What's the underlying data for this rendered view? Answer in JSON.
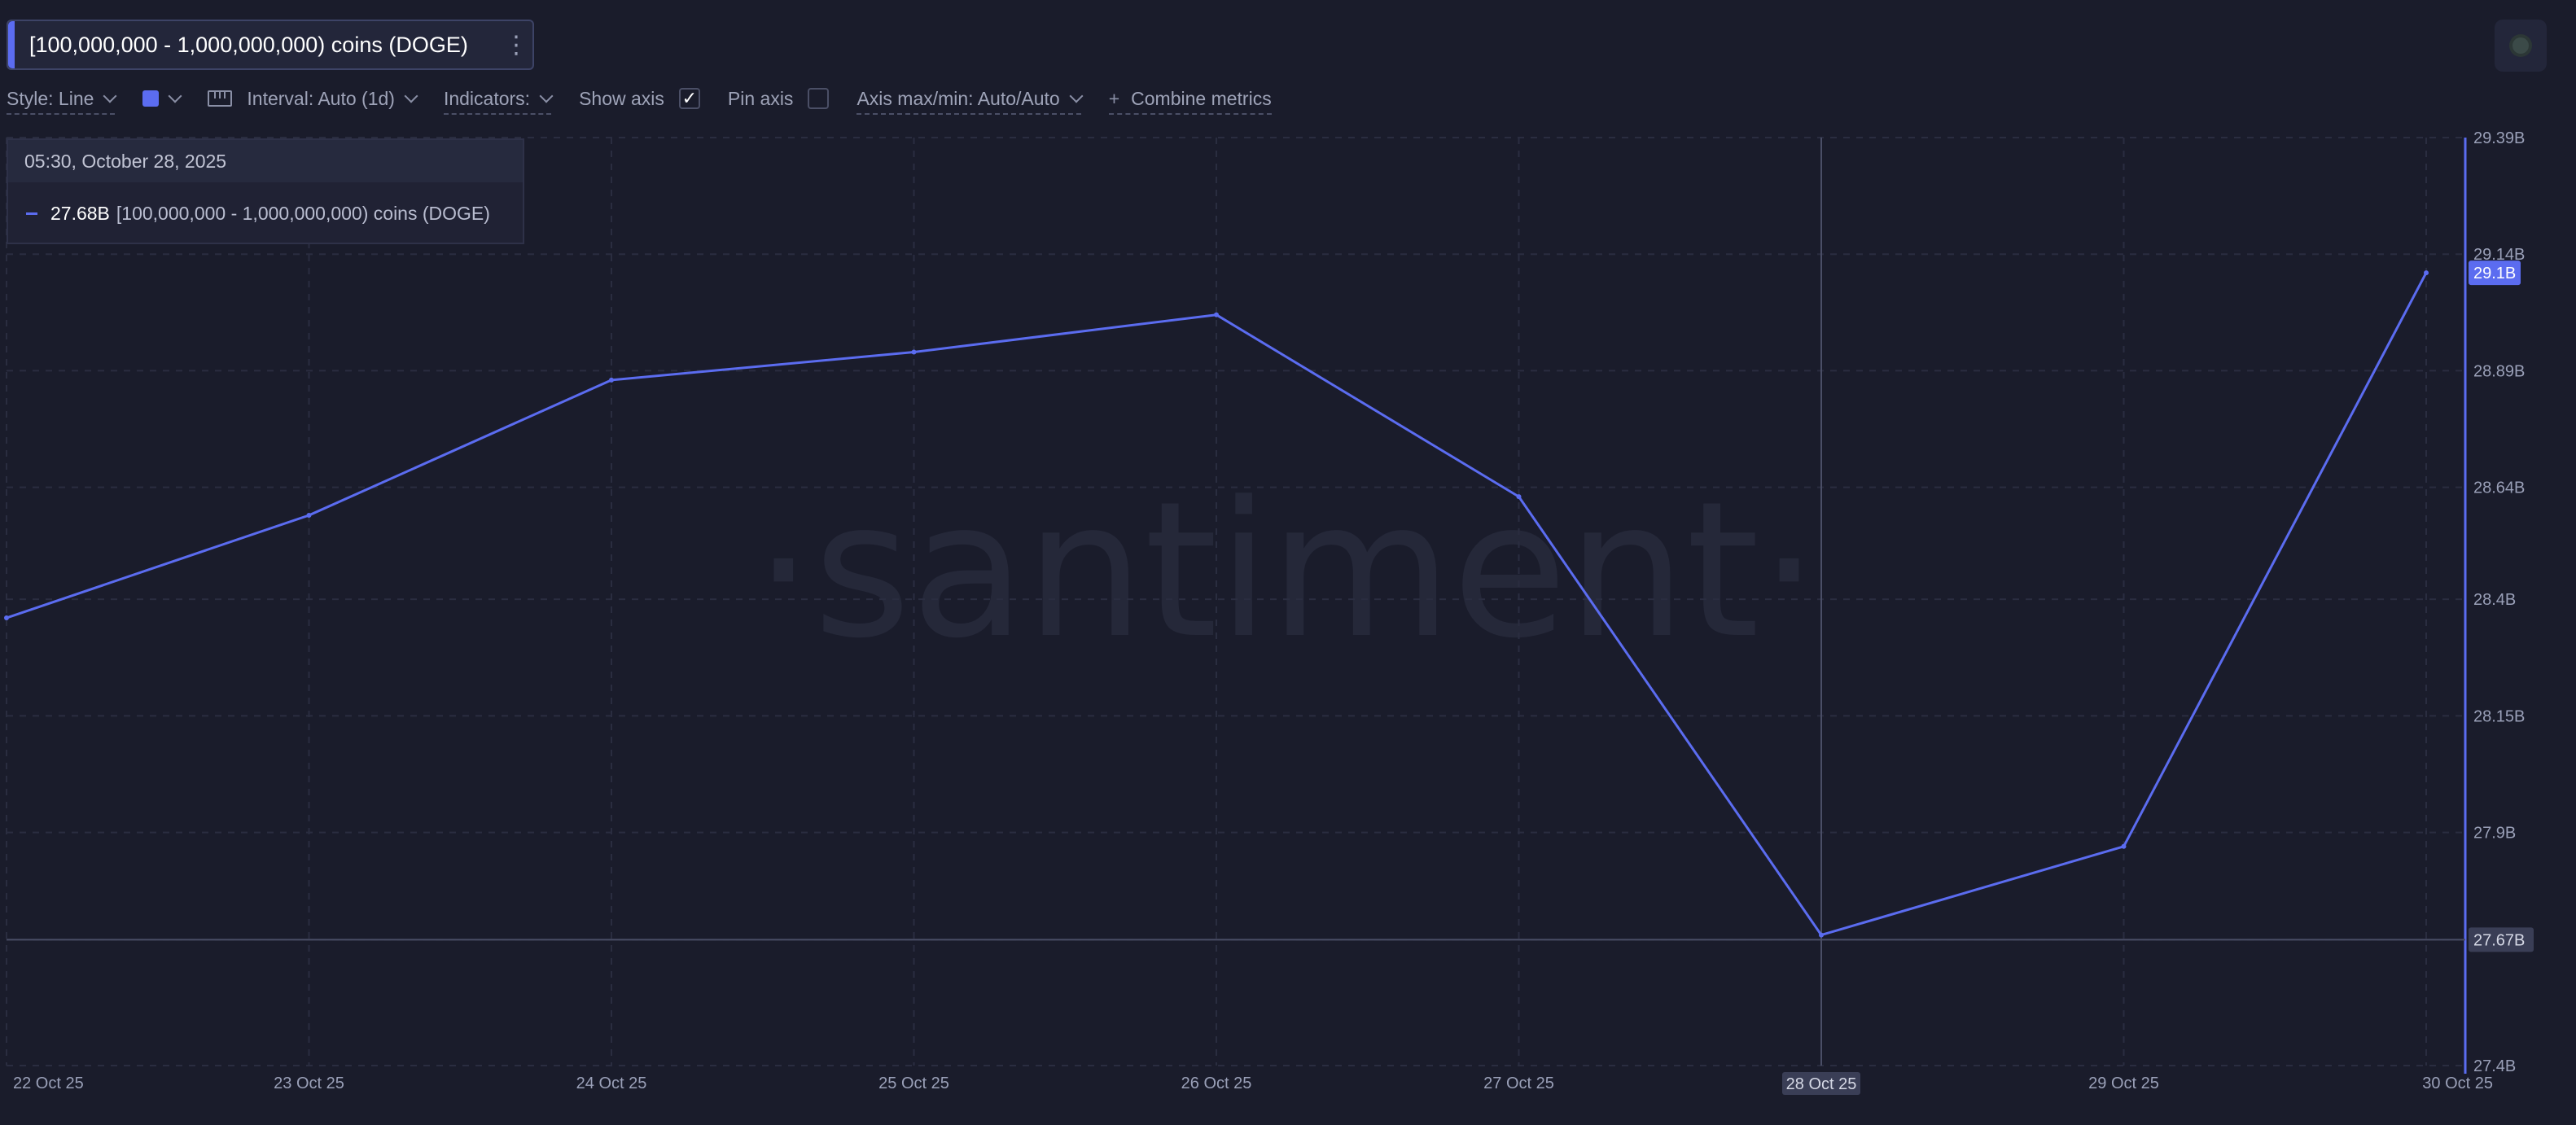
{
  "metric": {
    "label": "[100,000,000 - 1,000,000,000) coins (DOGE)"
  },
  "toolbar": {
    "style_label": "Style: Line",
    "interval_label": "Interval: Auto (1d)",
    "indicators_label": "Indicators:",
    "show_axis_label": "Show axis",
    "pin_axis_label": "Pin axis",
    "axis_maxmin_label": "Axis max/min: Auto/Auto",
    "combine_label": "Combine metrics"
  },
  "tooltip": {
    "date": "05:30, October 28, 2025",
    "value": "27.68B",
    "series": "[100,000,000 - 1,000,000,000) coins (DOGE)"
  },
  "watermark": "·santiment·",
  "colors": {
    "line": "#5b6cf0",
    "background": "#1a1c2b"
  },
  "chart_data": {
    "type": "line",
    "x": [
      "22 Oct 25",
      "23 Oct 25",
      "24 Oct 25",
      "25 Oct 25",
      "26 Oct 25",
      "27 Oct 25",
      "28 Oct 25",
      "29 Oct 25",
      "30 Oct 25"
    ],
    "series": [
      {
        "name": "[100,000,000 - 1,000,000,000) coins (DOGE)",
        "values": [
          28.36,
          28.58,
          28.87,
          28.93,
          29.01,
          28.62,
          27.68,
          27.87,
          29.1
        ]
      }
    ],
    "y_ticks": [
      "29.39B",
      "29.14B",
      "28.89B",
      "28.64B",
      "28.4B",
      "28.15B",
      "27.9B",
      "27.67B",
      "27.4B"
    ],
    "y_tick_values": [
      29.39,
      29.14,
      28.89,
      28.64,
      28.4,
      28.15,
      27.9,
      27.67,
      27.4
    ],
    "ylim": [
      27.4,
      29.39
    ],
    "y_unit": "B",
    "last_value_label": "29.1B",
    "crosshair": {
      "x": "28 Oct 25",
      "y_label": "27.67B"
    },
    "grid": true
  }
}
